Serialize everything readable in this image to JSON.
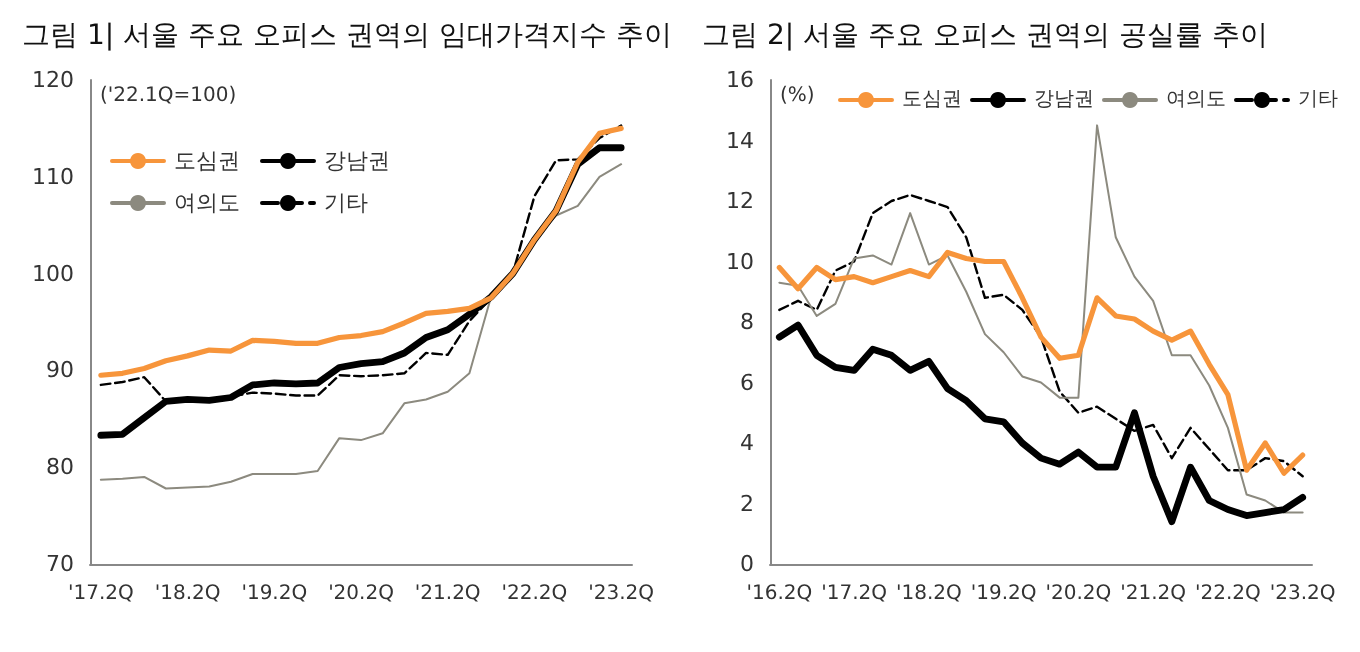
{
  "chart_data": [
    {
      "type": "line",
      "title": "그림 1| 서울 주요 오피스 권역의 임대가격지수 추이",
      "ylabel": "('22.1Q=100)",
      "categories": [
        "'17.2Q",
        null,
        null,
        null,
        "'18.2Q",
        null,
        null,
        null,
        "'19.2Q",
        null,
        null,
        null,
        "'20.2Q",
        null,
        null,
        null,
        "'21.2Q",
        null,
        null,
        null,
        "'22.2Q",
        null,
        null,
        null,
        "'23.2Q"
      ],
      "series": [
        {
          "name": "도심권",
          "color": "#f7953b",
          "values": [
            89.5,
            89.7,
            90.2,
            91,
            91.5,
            92.1,
            92,
            93.1,
            93,
            92.8,
            92.8,
            93.4,
            93.6,
            94,
            94.9,
            95.9,
            96.1,
            96.4,
            97.5,
            100,
            103.5,
            106.5,
            111.5,
            114.5,
            115
          ]
        },
        {
          "name": "강남권",
          "color": "#000000",
          "values": [
            83.3,
            83.4,
            85.1,
            86.8,
            87,
            86.9,
            87.2,
            88.5,
            88.7,
            88.6,
            88.7,
            90.3,
            90.7,
            90.9,
            91.8,
            93.4,
            94.2,
            95.8,
            97.6,
            100,
            103.5,
            106.5,
            111.3,
            113,
            113
          ]
        },
        {
          "name": "여의도",
          "color": "#8c8a7f",
          "values": [
            78.7,
            78.8,
            79,
            77.8,
            77.9,
            78,
            78.5,
            79.3,
            79.3,
            79.3,
            79.6,
            83,
            82.8,
            83.5,
            86.6,
            87,
            87.8,
            89.7,
            97.6,
            100,
            103.5,
            106,
            107,
            110,
            111.3
          ]
        },
        {
          "name": "기타",
          "color": "#000000",
          "line_style": "dashed",
          "values": [
            88.5,
            88.8,
            89.3,
            86.8,
            87,
            87,
            87.3,
            87.7,
            87.6,
            87.4,
            87.4,
            89.5,
            89.4,
            89.5,
            89.7,
            91.8,
            91.6,
            95.1,
            97.5,
            100,
            108,
            111.7,
            111.8,
            114,
            115.3
          ]
        }
      ],
      "ylim": [
        70,
        120
      ],
      "yticks": [
        70,
        80,
        90,
        100,
        110,
        120
      ],
      "grid": false,
      "legend": "top left",
      "marker": "none"
    },
    {
      "type": "line",
      "title": "그림 2| 서울 주요 오피스 권역의 공실률 추이",
      "ylabel": "(%)",
      "categories": [
        "'16.2Q",
        null,
        null,
        null,
        "'17.2Q",
        null,
        null,
        null,
        "'18.2Q",
        null,
        null,
        null,
        "'19.2Q",
        null,
        null,
        null,
        "'20.2Q",
        null,
        null,
        null,
        "'21.2Q",
        null,
        null,
        null,
        "'22.2Q",
        null,
        null,
        null,
        "'23.2Q"
      ],
      "series": [
        {
          "name": "도심권",
          "color": "#f7953b",
          "values": [
            9.8,
            9.1,
            9.8,
            9.4,
            9.5,
            9.3,
            9.5,
            9.7,
            9.5,
            10.3,
            10.1,
            10.0,
            10.0,
            8.8,
            7.5,
            6.8,
            6.9,
            8.8,
            8.2,
            8.1,
            7.7,
            7.4,
            7.7,
            6.6,
            5.6,
            3.1,
            4.0,
            3.0,
            3.6
          ]
        },
        {
          "name": "강남권",
          "color": "#000000",
          "values": [
            7.5,
            7.9,
            6.9,
            6.5,
            6.4,
            7.1,
            6.9,
            6.4,
            6.7,
            5.8,
            5.4,
            4.8,
            4.7,
            4.0,
            3.5,
            3.3,
            3.7,
            3.2,
            3.2,
            5.0,
            2.9,
            1.4,
            3.2,
            2.1,
            1.8,
            1.6,
            1.7,
            1.8,
            2.2
          ]
        },
        {
          "name": "여의도",
          "color": "#8c8a7f",
          "values": [
            9.3,
            9.2,
            8.2,
            8.6,
            10.1,
            10.2,
            9.9,
            11.6,
            9.9,
            10.2,
            9.0,
            7.6,
            7.0,
            6.2,
            6.0,
            5.5,
            5.5,
            14.5,
            10.8,
            9.5,
            8.7,
            6.9,
            6.9,
            5.9,
            4.5,
            2.3,
            2.1,
            1.7,
            1.7
          ]
        },
        {
          "name": "기타",
          "color": "#000000",
          "line_style": "dashed",
          "values": [
            8.4,
            8.7,
            8.4,
            9.7,
            10.0,
            11.6,
            12.0,
            12.2,
            12.0,
            11.8,
            10.8,
            8.8,
            8.9,
            8.4,
            7.5,
            5.7,
            5.0,
            5.2,
            4.8,
            4.4,
            4.6,
            3.5,
            4.5,
            3.8,
            3.1,
            3.1,
            3.5,
            3.4,
            2.9
          ]
        }
      ],
      "ylim": [
        0,
        16
      ],
      "yticks": [
        0,
        2,
        4,
        6,
        8,
        10,
        12,
        14,
        16
      ],
      "grid": false,
      "legend": "top right",
      "marker": "none"
    }
  ]
}
